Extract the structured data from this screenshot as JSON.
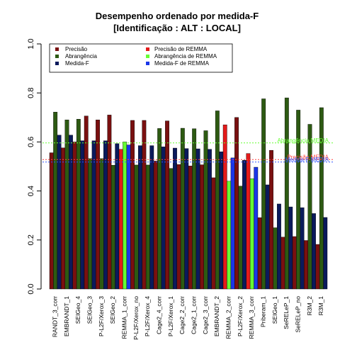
{
  "chart_data": {
    "type": "bar",
    "title": "Desempenho ordenado por medida-F",
    "subtitle": "[Identificação : ALT : LOCAL]",
    "ylim": [
      0,
      1
    ],
    "yticks": [
      "0.0",
      "0.2",
      "0.4",
      "0.6",
      "0.8",
      "1.0"
    ],
    "grid": false,
    "legend_position": "top",
    "categories": [
      "RANDT_3_corr",
      "EMBRANDT_1",
      "SEIGeo_4",
      "SEIGeo_3",
      "P-L2F/Xerox_3",
      "SEIGeo_2",
      "REMMA_1_corr",
      "P-L2F/Xerox_no",
      "P-L2F/Xerox_4",
      "Cage2_4_corr",
      "P-L2F/Xerox_1",
      "Cage2_2_corr",
      "Cage2_1_corr",
      "Cage2_3_corr",
      "EMBRANDT_2",
      "REMMA_2_corr",
      "P-L2F/Xerox_2",
      "REMMA_3_corr",
      "Priberam_1",
      "SEIGeo_1",
      "SeRELeP_1",
      "SeRELeP_no",
      "R3M_2",
      "R3M_1"
    ],
    "series": [
      {
        "name": "Precisão",
        "color": "#7a1010",
        "values": [
          0.556,
          0.576,
          0.6,
          0.706,
          0.69,
          0.71,
          0.57,
          0.688,
          0.688,
          0.522,
          0.686,
          0.508,
          0.502,
          0.507,
          0.454,
          0.67,
          0.7,
          0.553,
          0.291,
          0.566,
          0.212,
          0.214,
          0.198,
          0.182
        ]
      },
      {
        "name": "Abrangência",
        "color": "#2d5a12",
        "values": [
          0.722,
          0.69,
          0.693,
          0.532,
          0.532,
          0.505,
          0.6,
          0.506,
          0.506,
          0.655,
          0.492,
          0.656,
          0.654,
          0.646,
          0.727,
          0.44,
          0.42,
          0.45,
          0.776,
          0.25,
          0.78,
          0.73,
          0.672,
          0.74
        ]
      },
      {
        "name": "Medida-F",
        "color": "#0b1a5c",
        "values": [
          0.628,
          0.628,
          0.605,
          0.605,
          0.605,
          0.593,
          0.588,
          0.585,
          0.585,
          0.58,
          0.575,
          0.573,
          0.572,
          0.57,
          0.56,
          0.535,
          0.525,
          0.497,
          0.425,
          0.347,
          0.335,
          0.332,
          0.308,
          0.292
        ]
      }
    ],
    "highlight": {
      "category": "REMMA",
      "series": [
        {
          "name": "Precisão de REMMA",
          "color": "#e41a1a"
        },
        {
          "name": "Abrangência de REMMA",
          "color": "#66ff33"
        },
        {
          "name": "Medida-F de REMMA",
          "color": "#1a36e8"
        }
      ]
    },
    "reference_lines": [
      {
        "label": "Abrangência MEDIA",
        "value": 0.596,
        "color": "#66ff33"
      },
      {
        "label": "Precisão MEDIA",
        "value": 0.528,
        "color": "#ff4040"
      },
      {
        "label": "Medida-F MEDIA",
        "value": 0.518,
        "color": "#3355ff"
      }
    ]
  }
}
